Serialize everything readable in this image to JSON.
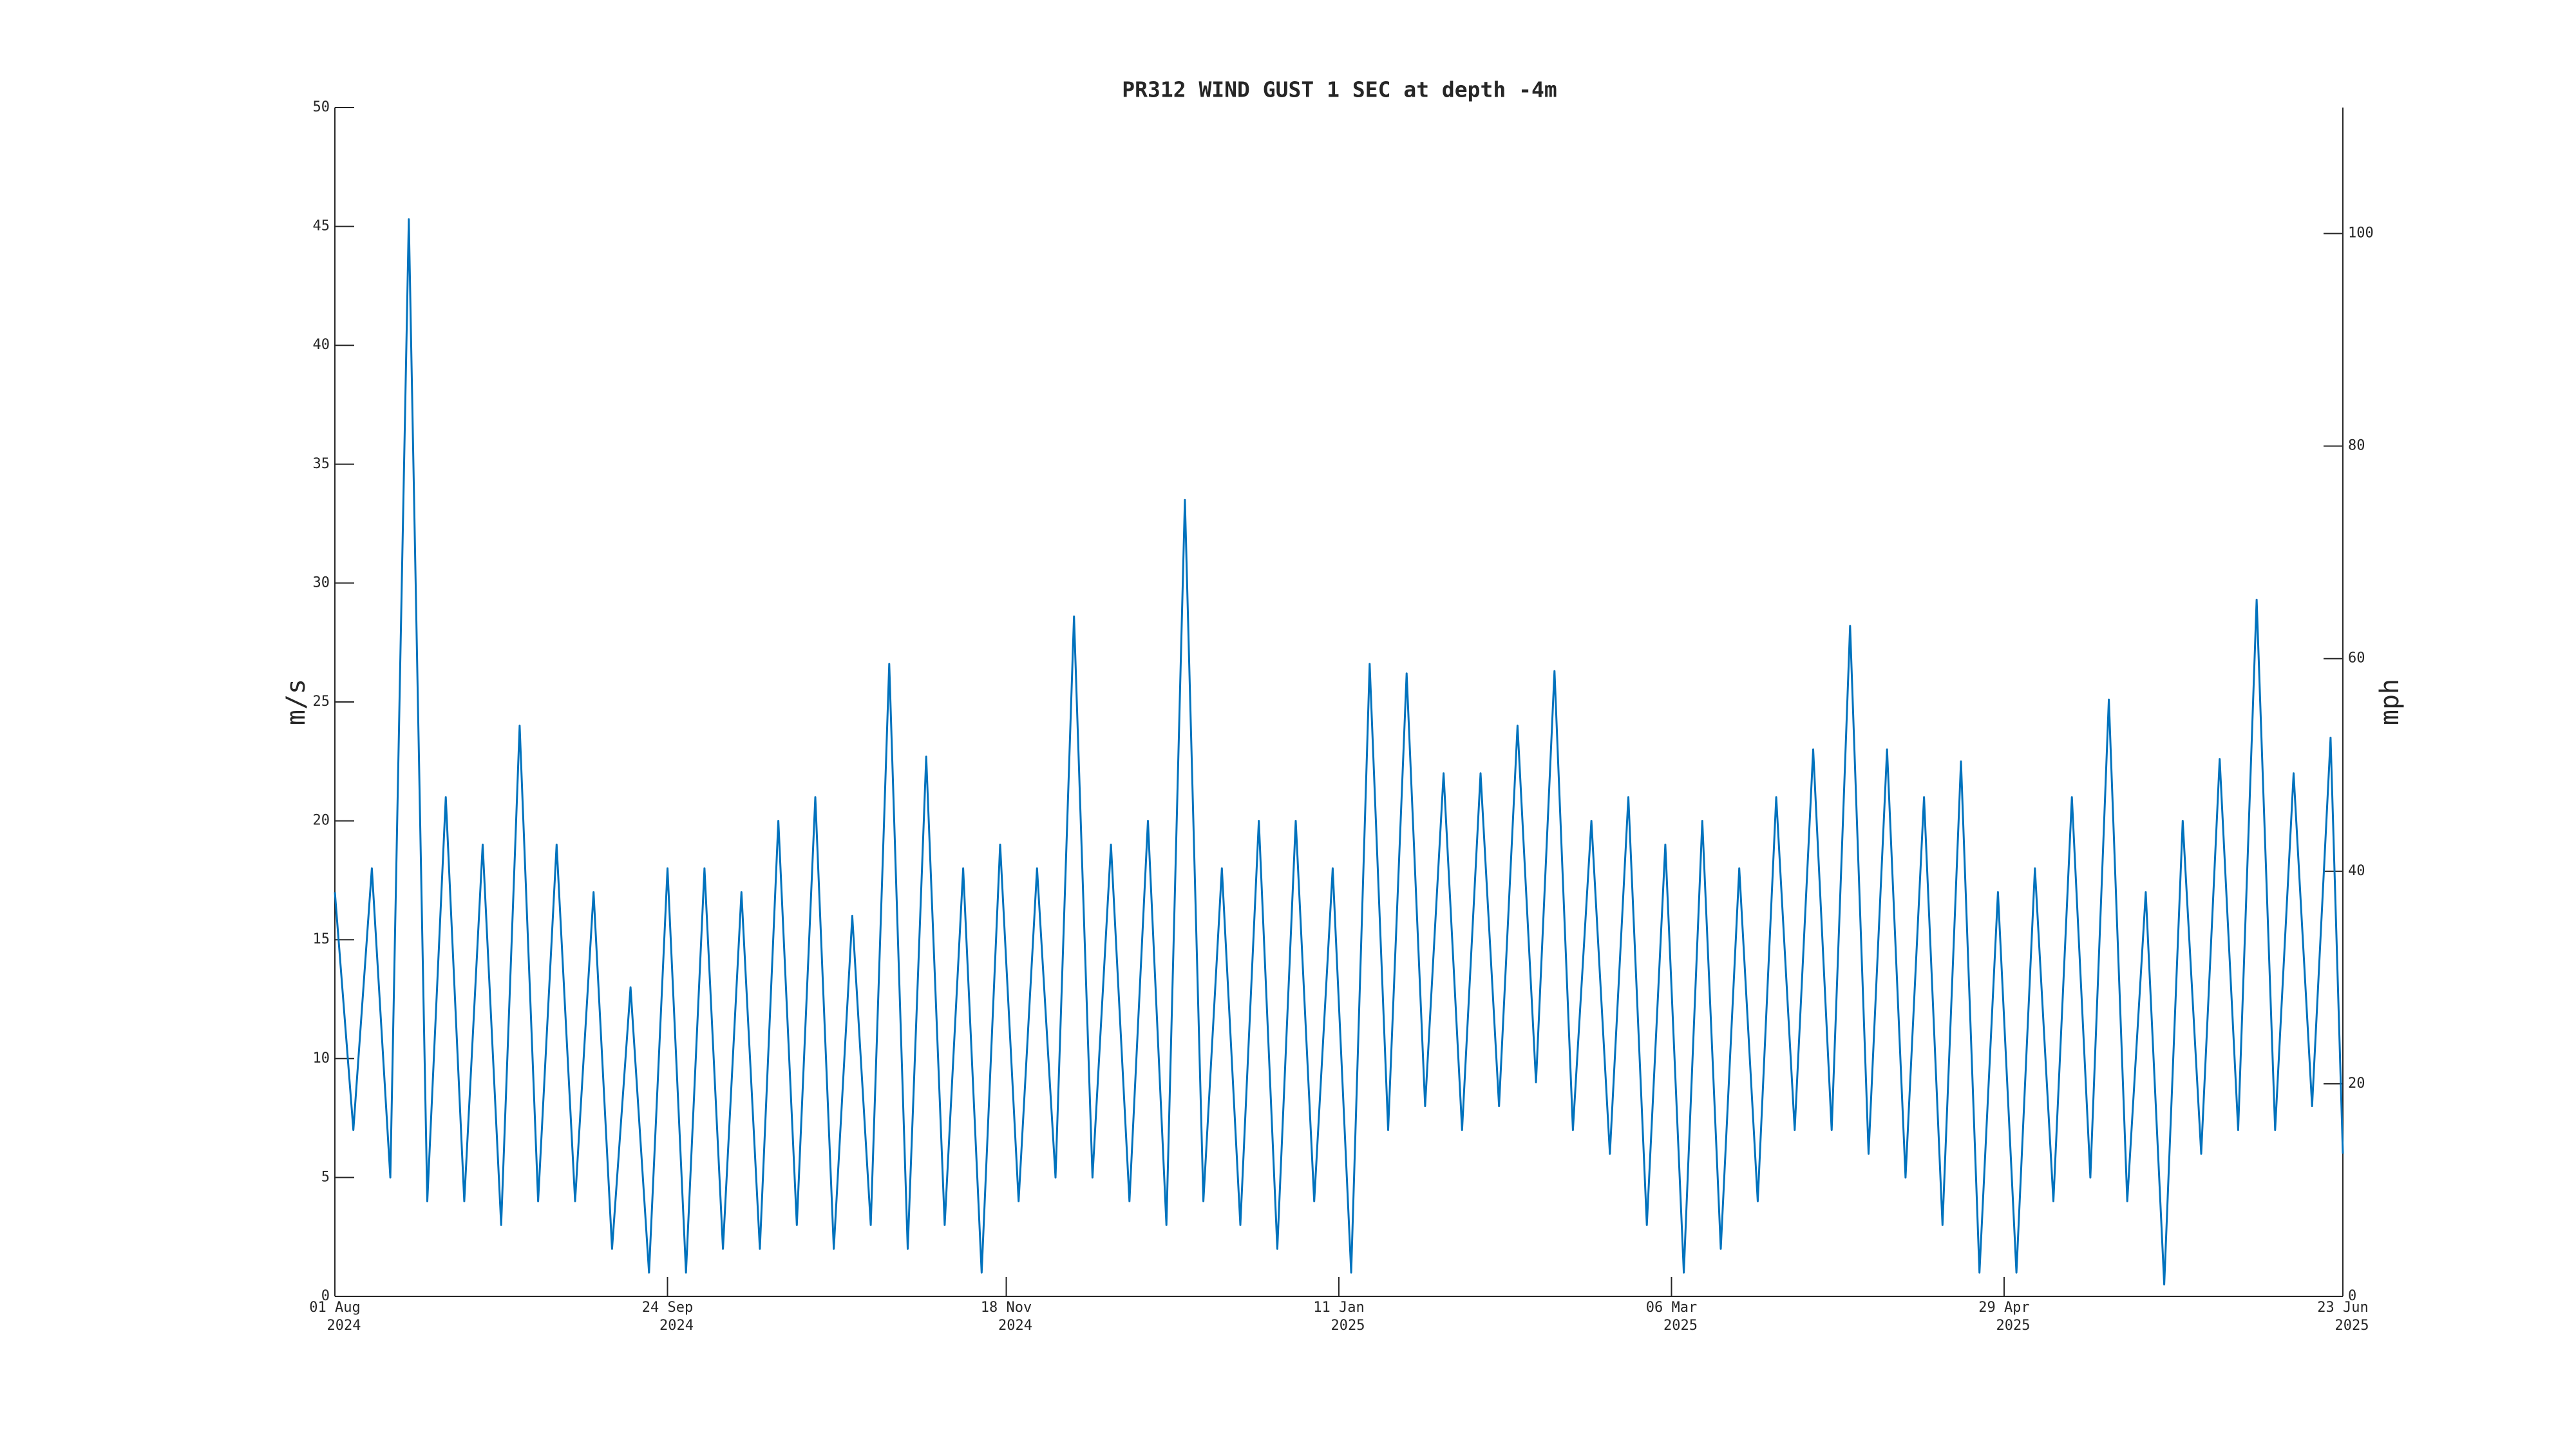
{
  "chart_data": {
    "type": "line",
    "title": "PR312 WIND GUST 1 SEC at depth -4m",
    "y_label": "m/s",
    "y2_label": "mph",
    "x": [
      "2024-08-01",
      "2024-08-04",
      "2024-08-07",
      "2024-08-10",
      "2024-08-13",
      "2024-08-16",
      "2024-08-19",
      "2024-08-22",
      "2024-08-25",
      "2024-08-28",
      "2024-08-31",
      "2024-09-03",
      "2024-09-06",
      "2024-09-09",
      "2024-09-12",
      "2024-09-15",
      "2024-09-18",
      "2024-09-21",
      "2024-09-24",
      "2024-09-27",
      "2024-09-30",
      "2024-10-03",
      "2024-10-06",
      "2024-10-09",
      "2024-10-12",
      "2024-10-15",
      "2024-10-18",
      "2024-10-21",
      "2024-10-24",
      "2024-10-27",
      "2024-10-30",
      "2024-11-02",
      "2024-11-05",
      "2024-11-08",
      "2024-11-11",
      "2024-11-14",
      "2024-11-17",
      "2024-11-20",
      "2024-11-23",
      "2024-11-26",
      "2024-11-29",
      "2024-12-02",
      "2024-12-05",
      "2024-12-08",
      "2024-12-11",
      "2024-12-14",
      "2024-12-17",
      "2024-12-20",
      "2024-12-23",
      "2024-12-26",
      "2024-12-29",
      "2025-01-01",
      "2025-01-04",
      "2025-01-07",
      "2025-01-10",
      "2025-01-13",
      "2025-01-16",
      "2025-01-19",
      "2025-01-22",
      "2025-01-25",
      "2025-01-28",
      "2025-01-31",
      "2025-02-03",
      "2025-02-06",
      "2025-02-09",
      "2025-02-12",
      "2025-02-15",
      "2025-02-18",
      "2025-02-21",
      "2025-02-24",
      "2025-02-27",
      "2025-03-02",
      "2025-03-05",
      "2025-03-08",
      "2025-03-11",
      "2025-03-14",
      "2025-03-17",
      "2025-03-20",
      "2025-03-23",
      "2025-03-26",
      "2025-03-29",
      "2025-04-01",
      "2025-04-04",
      "2025-04-07",
      "2025-04-10",
      "2025-04-13",
      "2025-04-16",
      "2025-04-19",
      "2025-04-22",
      "2025-04-25",
      "2025-04-28",
      "2025-05-01",
      "2025-05-04",
      "2025-05-07",
      "2025-05-10",
      "2025-05-13",
      "2025-05-16",
      "2025-05-19",
      "2025-05-22",
      "2025-05-25",
      "2025-05-28",
      "2025-05-31",
      "2025-06-03",
      "2025-06-06",
      "2025-06-09",
      "2025-06-12",
      "2025-06-15",
      "2025-06-18",
      "2025-06-21",
      "2025-06-23"
    ],
    "series": [
      {
        "name": "Wind gust",
        "color": "#0072bd",
        "values": [
          17,
          7,
          18,
          5,
          45.3,
          4,
          21,
          4,
          19,
          3,
          24,
          4,
          19,
          4,
          17,
          2,
          13,
          1,
          18,
          1,
          18,
          2,
          17,
          2,
          20,
          3,
          21,
          2,
          16,
          3,
          26.6,
          2,
          22.7,
          3,
          18,
          1,
          19,
          4,
          18,
          5,
          28.6,
          5,
          19,
          4,
          20,
          3,
          33.5,
          4,
          18,
          3,
          20,
          2,
          20,
          4,
          18,
          1,
          26.6,
          7,
          26.2,
          8,
          22,
          7,
          22,
          8,
          24,
          9,
          26.3,
          7,
          20,
          6,
          21,
          3,
          19,
          1,
          20,
          2,
          18,
          4,
          21,
          7,
          23,
          7,
          28.2,
          6,
          23,
          5,
          21,
          3,
          22.5,
          1,
          17,
          1,
          18,
          4,
          21,
          5,
          25.1,
          4,
          17,
          0.5,
          20,
          6,
          22.6,
          7,
          29.3,
          7,
          22,
          8,
          23.5,
          6
        ]
      }
    ],
    "xlim": [
      "2024-08-01",
      "2025-06-23"
    ],
    "xticks": [
      {
        "value": "2024-08-01",
        "label": [
          "01 Aug",
          "2024"
        ]
      },
      {
        "value": "2024-09-24",
        "label": [
          "24 Sep",
          "2024"
        ]
      },
      {
        "value": "2024-11-18",
        "label": [
          "18 Nov",
          "2024"
        ]
      },
      {
        "value": "2025-01-11",
        "label": [
          "11 Jan",
          "2025"
        ]
      },
      {
        "value": "2025-03-06",
        "label": [
          "06 Mar",
          "2025"
        ]
      },
      {
        "value": "2025-04-29",
        "label": [
          "29 Apr",
          "2025"
        ]
      },
      {
        "value": "2025-06-23",
        "label": [
          "23 Jun",
          "2025"
        ]
      }
    ],
    "ylim": [
      0,
      50
    ],
    "yticks": [
      0,
      5,
      10,
      15,
      20,
      25,
      30,
      35,
      40,
      45,
      50
    ],
    "y2lim": [
      0,
      111.85
    ],
    "y2ticks": [
      0,
      20,
      40,
      60,
      80,
      100
    ],
    "grid": false
  }
}
